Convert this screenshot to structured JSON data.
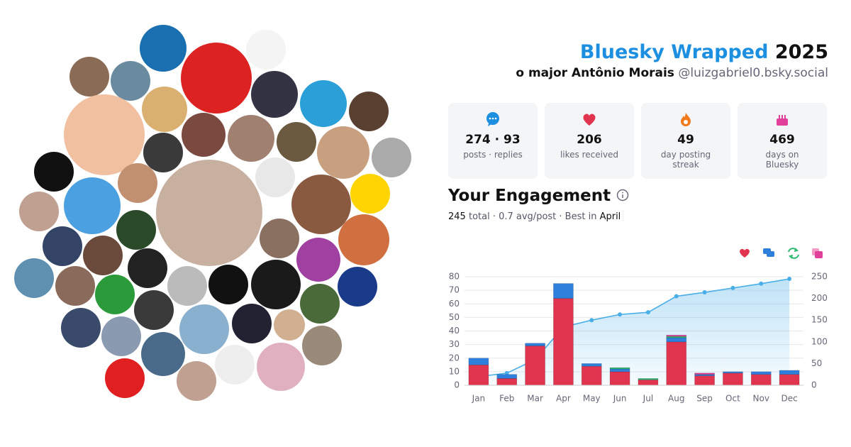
{
  "header": {
    "title": "Bluesky Wrapped",
    "year": "2025",
    "name": "o major Antônio Morais",
    "handle": "@luizgabriel0.bsky.social"
  },
  "stats": [
    {
      "value": "274 · 93",
      "label": "posts · replies"
    },
    {
      "value": 206,
      "label": "likes received"
    },
    {
      "value": 49,
      "label": "day posting streak"
    },
    {
      "value": 469,
      "label": "days on Bluesky"
    }
  ],
  "engagement": {
    "title": "Your Engagement",
    "total": 245,
    "summary": "total · 0.7 avg/post · Best in",
    "best": "April"
  },
  "chart_data": {
    "type": "bar",
    "categories": [
      "Jan",
      "Feb",
      "Mar",
      "Apr",
      "May",
      "Jun",
      "Jul",
      "Aug",
      "Sep",
      "Oct",
      "Nov",
      "Dec"
    ],
    "series": [
      {
        "color": "#e0344f",
        "values": [
          15,
          5,
          29,
          64,
          14,
          10,
          4,
          32,
          7,
          9,
          8,
          8
        ]
      },
      {
        "color": "#2f7fdc",
        "values": [
          5,
          3,
          2,
          11,
          2,
          2,
          0,
          3,
          1,
          1,
          2,
          3
        ]
      },
      {
        "color": "#2eb872",
        "values": [
          0,
          0,
          0,
          0,
          0,
          1,
          1,
          1,
          0,
          0,
          0,
          0
        ]
      },
      {
        "color": "#e0409a",
        "values": [
          0,
          0,
          0,
          0,
          0,
          0,
          0,
          1,
          1,
          0,
          0,
          0
        ]
      },
      {
        "type": "line",
        "axis": "y2",
        "color": "#4aaee8",
        "values": [
          20,
          28,
          59,
          134,
          150,
          163,
          168,
          205,
          214,
          224,
          234,
          245
        ]
      }
    ],
    "ylim": [
      0,
      80
    ],
    "yticks": [
      0,
      10,
      20,
      30,
      40,
      50,
      60,
      70,
      80
    ],
    "y2lim": [
      0,
      250
    ],
    "y2ticks": [
      0,
      50,
      100,
      150,
      200,
      250
    ],
    "grid": true
  }
}
